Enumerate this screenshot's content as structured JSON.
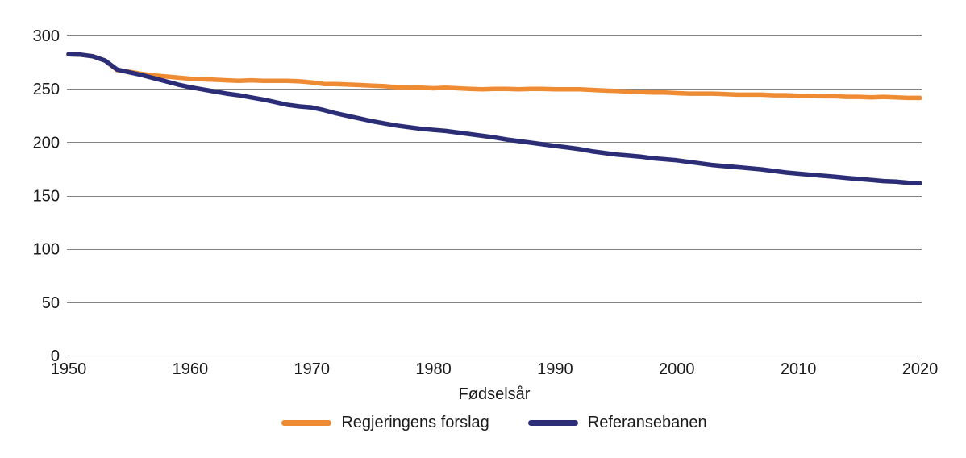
{
  "chart_data": {
    "type": "line",
    "title": "",
    "xlabel": "Fødselsår",
    "ylabel": "",
    "ylim": [
      0,
      300
    ],
    "yticks": [
      0,
      50,
      100,
      150,
      200,
      250,
      300
    ],
    "xticks": [
      1950,
      1960,
      1970,
      1980,
      1990,
      2000,
      2010,
      2020
    ],
    "x_start": 1950,
    "x_end": 2020,
    "x_step": 1,
    "grid": true,
    "legend_position": "bottom",
    "gridline_color": "#828282",
    "axis_line_color": "#4a4a4a",
    "text_color": "#1a1a1a",
    "series": [
      {
        "name": "Regjeringens forslag",
        "color": "#EF8B33",
        "values": [
          282.5,
          282,
          280.5,
          276.5,
          267.5,
          266,
          264,
          262.5,
          261.5,
          260.5,
          259.5,
          259,
          258.5,
          258,
          257.5,
          258,
          257.5,
          257.5,
          257.5,
          257,
          256,
          254.5,
          254.5,
          254,
          253.5,
          253,
          252.5,
          251.5,
          251,
          251,
          250.5,
          251,
          250.5,
          250,
          249.5,
          250,
          250,
          249.5,
          250,
          250,
          249.5,
          249.5,
          249.5,
          249,
          248.5,
          248,
          247.5,
          247,
          246.5,
          246.5,
          246,
          245.5,
          245.5,
          245.5,
          245,
          244.5,
          244.5,
          244.5,
          244,
          244,
          243.5,
          243.5,
          243,
          243,
          242.5,
          242.5,
          242,
          242.5,
          242,
          241.5,
          241.5
        ]
      },
      {
        "name": "Referansebanen",
        "color": "#2B2D77",
        "values": [
          282.5,
          282,
          280.5,
          276.5,
          268,
          265.5,
          263,
          260,
          257,
          254,
          251.5,
          249.5,
          247.5,
          245.5,
          244,
          242,
          240,
          237.5,
          235,
          233.5,
          232.5,
          230,
          227,
          224.5,
          222,
          219.5,
          217.5,
          215.5,
          214,
          212.5,
          211.5,
          210.5,
          209,
          207.5,
          206,
          204.5,
          202.5,
          201,
          199.5,
          198,
          196.5,
          195,
          193.5,
          191.5,
          190,
          188.5,
          187.5,
          186.5,
          185,
          184,
          183,
          181.5,
          180,
          178.5,
          177.5,
          176.5,
          175.5,
          174.5,
          173,
          171.5,
          170.5,
          169.5,
          168.5,
          167.5,
          166.5,
          165.5,
          164.5,
          163.5,
          163,
          162,
          161.5
        ]
      }
    ]
  }
}
